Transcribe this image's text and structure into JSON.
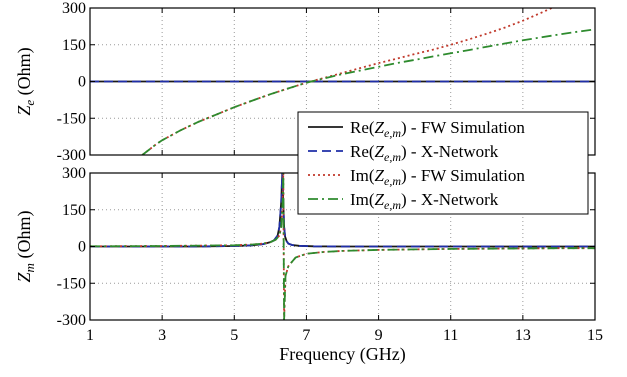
{
  "chart_data": [
    {
      "type": "line",
      "panel": "top",
      "ylabel_main": "Z",
      "ylabel_sub": "e",
      "ylabel_rest": " (Ohm)",
      "xlim": [
        1,
        15
      ],
      "ylim": [
        -300,
        300
      ],
      "yticks": [
        300,
        150,
        0,
        -150,
        -300
      ],
      "ytick_labels": [
        "300",
        "150",
        "0",
        "-150",
        "-300"
      ],
      "grid": true,
      "series": [
        {
          "key": "re_fw",
          "color": "#1a1a1a",
          "dash": "",
          "x": [
            1,
            15
          ],
          "y": [
            0,
            0
          ]
        },
        {
          "key": "re_xn",
          "color": "#1f2ea8",
          "dash": "9,5",
          "x": [
            1,
            15
          ],
          "y": [
            0,
            0
          ]
        },
        {
          "key": "im_fw",
          "color": "#c0392b",
          "dash": "2,3",
          "x": [
            2.45,
            2.8,
            3,
            3.5,
            4,
            4.5,
            5,
            5.5,
            6,
            6.5,
            7,
            7.5,
            8,
            8.5,
            9,
            9.5,
            10,
            10.5,
            11,
            11.5,
            12,
            12.5,
            13,
            13.5,
            13.8
          ],
          "y": [
            -300,
            -260,
            -240,
            -200,
            -165,
            -135,
            -105,
            -78,
            -52,
            -28,
            -5,
            15,
            35,
            55,
            75,
            93,
            112,
            130,
            150,
            172,
            195,
            220,
            248,
            280,
            300
          ]
        },
        {
          "key": "im_xn",
          "color": "#2e8b2e",
          "dash": "10,4,2,4",
          "x": [
            2.45,
            2.8,
            3,
            3.5,
            4,
            4.5,
            5,
            5.5,
            6,
            6.5,
            7,
            7.5,
            8,
            8.5,
            9,
            9.5,
            10,
            10.5,
            11,
            11.5,
            12,
            12.5,
            13,
            13.5,
            14,
            14.5,
            15
          ],
          "y": [
            -300,
            -260,
            -240,
            -200,
            -165,
            -135,
            -105,
            -78,
            -52,
            -28,
            -5,
            13,
            30,
            45,
            60,
            75,
            88,
            102,
            115,
            128,
            142,
            155,
            168,
            180,
            192,
            203,
            213
          ]
        }
      ]
    },
    {
      "type": "line",
      "panel": "bottom",
      "ylabel_main": "Z",
      "ylabel_sub": "m",
      "ylabel_rest": " (Ohm)",
      "xlabel": "Frequency (GHz)",
      "xlim": [
        1,
        15
      ],
      "ylim": [
        -300,
        300
      ],
      "xticks": [
        1,
        3,
        5,
        7,
        9,
        11,
        13,
        15
      ],
      "xtick_labels": [
        "1",
        "3",
        "5",
        "7",
        "9",
        "11",
        "13",
        "15"
      ],
      "yticks": [
        300,
        150,
        0,
        -150,
        -300
      ],
      "ytick_labels": [
        "300",
        "150",
        "0",
        "-150",
        "-300"
      ],
      "grid": true,
      "series": [
        {
          "key": "re_fw",
          "color": "#1a1a1a",
          "dash": "",
          "x": [
            1,
            4,
            5,
            5.5,
            5.8,
            6,
            6.1,
            6.2,
            6.25,
            6.3,
            6.33,
            6.36,
            6.38,
            6.41,
            6.45,
            6.5,
            6.6,
            6.8,
            7.2,
            8,
            15
          ],
          "y": [
            0,
            0,
            2,
            5,
            10,
            18,
            25,
            45,
            80,
            180,
            300,
            180,
            80,
            40,
            22,
            12,
            6,
            3,
            1,
            0,
            0
          ]
        },
        {
          "key": "re_xn",
          "color": "#1f2ea8",
          "dash": "9,5",
          "x": [
            1,
            4,
            5,
            5.5,
            5.8,
            6,
            6.1,
            6.2,
            6.25,
            6.3,
            6.33,
            6.36,
            6.38,
            6.41,
            6.45,
            6.5,
            6.6,
            6.8,
            7.2,
            8,
            15
          ],
          "y": [
            0,
            0,
            2,
            5,
            10,
            18,
            25,
            45,
            80,
            180,
            300,
            180,
            80,
            40,
            22,
            12,
            6,
            3,
            1,
            0,
            0
          ]
        },
        {
          "key": "im_fw",
          "color": "#c0392b",
          "dash": "2,3",
          "x": [
            1,
            3,
            5,
            5.5,
            5.8,
            6,
            6.15,
            6.25,
            6.3,
            6.34,
            6.36,
            6.38,
            6.42,
            6.5,
            6.7,
            7,
            7.5,
            8,
            9,
            10,
            11,
            12,
            13,
            14,
            15
          ],
          "y": [
            1,
            2,
            5,
            8,
            12,
            18,
            28,
            45,
            80,
            180,
            300,
            -300,
            -120,
            -80,
            -45,
            -30,
            -22,
            -18,
            -14,
            -12,
            -10,
            -9,
            -8,
            -7,
            -7
          ]
        },
        {
          "key": "im_xn",
          "color": "#2e8b2e",
          "dash": "10,4,2,4",
          "x": [
            1,
            3,
            5,
            5.5,
            5.8,
            6,
            6.15,
            6.25,
            6.3,
            6.34,
            6.36,
            6.38,
            6.42,
            6.5,
            6.7,
            7,
            7.5,
            8,
            9,
            10,
            11,
            12,
            13,
            14,
            15
          ],
          "y": [
            1,
            2,
            5,
            8,
            12,
            18,
            28,
            45,
            80,
            180,
            300,
            -300,
            -120,
            -80,
            -45,
            -30,
            -22,
            -18,
            -14,
            -12,
            -10,
            -9,
            -8,
            -7,
            -7
          ]
        }
      ]
    }
  ],
  "legend": {
    "placement": "right-center",
    "entries": [
      {
        "key": "re_fw",
        "prefix": "Re(Z",
        "sub": "e,m",
        "suffix": ") - FW Simulation"
      },
      {
        "key": "re_xn",
        "prefix": "Re(Z",
        "sub": "e,m",
        "suffix": ") - X-Network"
      },
      {
        "key": "im_fw",
        "prefix": "Im(Z",
        "sub": "e,m",
        "suffix": ") - FW Simulation"
      },
      {
        "key": "im_xn",
        "prefix": "Im(Z",
        "sub": "e,m",
        "suffix": ") - X-Network"
      }
    ]
  },
  "colors": {
    "re_fw": "#1a1a1a",
    "re_xn": "#1f2ea8",
    "im_fw": "#c0392b",
    "im_xn": "#2e8b2e",
    "grid": "#9a9a9a"
  }
}
